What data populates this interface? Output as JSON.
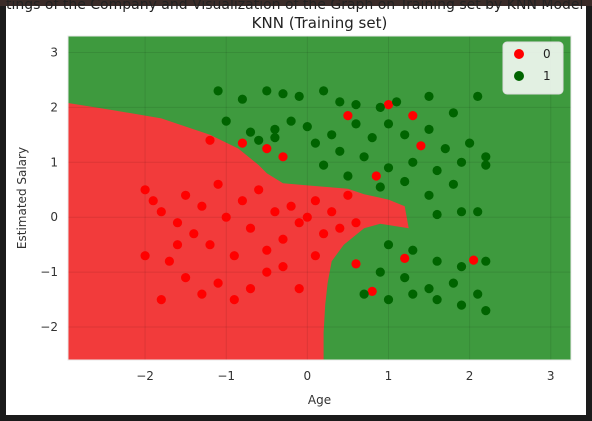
{
  "page": {
    "cut_off_title": "tings of the Company and Visualization of the Graph on Training set by KNN Model of Customer Purchases of a Company"
  },
  "chart_data": {
    "type": "scatter",
    "title": "KNN (Training set)",
    "xlabel": "Age",
    "ylabel": "Estimated Salary",
    "xlim": [
      -2.95,
      3.25
    ],
    "ylim": [
      -2.6,
      3.3
    ],
    "xticks": [
      -2,
      -1,
      0,
      1,
      2,
      3
    ],
    "yticks": [
      -2,
      -1,
      0,
      1,
      2,
      3
    ],
    "grid": true,
    "legend_position": "top-right",
    "colors": {
      "region_0": "#f23b3b",
      "region_1": "#3e9a3e",
      "point_0": "#ff0000",
      "point_1": "#006400"
    },
    "boundary": [
      [
        -2.95,
        2.08
      ],
      [
        -2.4,
        1.95
      ],
      [
        -1.8,
        1.8
      ],
      [
        -1.2,
        1.5
      ],
      [
        -0.85,
        1.25
      ],
      [
        -0.6,
        0.95
      ],
      [
        -0.5,
        0.8
      ],
      [
        -0.3,
        0.62
      ],
      [
        0.0,
        0.58
      ],
      [
        0.5,
        0.52
      ],
      [
        0.7,
        0.42
      ],
      [
        1.0,
        0.32
      ],
      [
        1.2,
        0.2
      ],
      [
        1.25,
        -0.2
      ],
      [
        0.9,
        -0.12
      ],
      [
        0.7,
        -0.2
      ],
      [
        0.45,
        -0.5
      ],
      [
        0.3,
        -0.8
      ],
      [
        0.25,
        -1.2
      ],
      [
        0.22,
        -1.6
      ],
      [
        0.2,
        -2.1
      ],
      [
        0.2,
        -2.6
      ]
    ],
    "series": [
      {
        "name": "0",
        "points": [
          [
            -2,
            0.5
          ],
          [
            -1.9,
            0.3
          ],
          [
            -1.8,
            0.1
          ],
          [
            -1.6,
            -0.1
          ],
          [
            -1.5,
            0.4
          ],
          [
            -1.4,
            -0.3
          ],
          [
            -1.3,
            0.2
          ],
          [
            -1.2,
            -0.5
          ],
          [
            -1.1,
            0.6
          ],
          [
            -1.0,
            0.0
          ],
          [
            -0.9,
            -0.7
          ],
          [
            -0.8,
            0.3
          ],
          [
            -0.7,
            -0.2
          ],
          [
            -0.6,
            0.5
          ],
          [
            -0.5,
            -0.6
          ],
          [
            -0.4,
            0.1
          ],
          [
            -0.3,
            -0.4
          ],
          [
            -0.2,
            0.2
          ],
          [
            -0.1,
            -0.1
          ],
          [
            0.0,
            0.0
          ],
          [
            0.1,
            0.3
          ],
          [
            0.2,
            -0.3
          ],
          [
            0.3,
            0.1
          ],
          [
            0.4,
            -0.2
          ],
          [
            0.5,
            0.4
          ],
          [
            0.6,
            -0.1
          ],
          [
            -1.7,
            -0.8
          ],
          [
            -1.5,
            -1.1
          ],
          [
            -1.3,
            -1.4
          ],
          [
            -1.1,
            -1.2
          ],
          [
            -0.9,
            -1.5
          ],
          [
            -0.7,
            -1.3
          ],
          [
            -0.5,
            -1.0
          ],
          [
            -0.3,
            -0.9
          ],
          [
            -0.1,
            -1.3
          ],
          [
            0.1,
            -0.7
          ],
          [
            -2.0,
            -0.7
          ],
          [
            -1.8,
            -1.5
          ],
          [
            -1.6,
            -0.5
          ],
          [
            -1.2,
            1.4
          ],
          [
            -0.8,
            1.35
          ],
          [
            -0.5,
            1.25
          ],
          [
            -0.3,
            1.1
          ],
          [
            0.5,
            1.85
          ],
          [
            1.0,
            2.05
          ],
          [
            1.3,
            1.85
          ],
          [
            1.4,
            1.3
          ],
          [
            0.85,
            0.75
          ],
          [
            0.6,
            -0.85
          ],
          [
            1.2,
            -0.75
          ],
          [
            2.05,
            -0.78
          ],
          [
            0.8,
            -1.35
          ]
        ]
      },
      {
        "name": "1",
        "points": [
          [
            -1.1,
            2.3
          ],
          [
            -0.8,
            2.15
          ],
          [
            -0.5,
            2.3
          ],
          [
            -0.3,
            2.25
          ],
          [
            -0.1,
            2.2
          ],
          [
            0.2,
            2.3
          ],
          [
            0.4,
            2.1
          ],
          [
            0.6,
            2.05
          ],
          [
            0.9,
            2.0
          ],
          [
            1.1,
            2.1
          ],
          [
            1.5,
            2.2
          ],
          [
            1.8,
            1.9
          ],
          [
            2.1,
            2.2
          ],
          [
            -1.0,
            1.75
          ],
          [
            -0.7,
            1.55
          ],
          [
            -0.4,
            1.6
          ],
          [
            -0.2,
            1.75
          ],
          [
            0.0,
            1.65
          ],
          [
            0.3,
            1.5
          ],
          [
            0.6,
            1.7
          ],
          [
            0.8,
            1.45
          ],
          [
            1.0,
            1.7
          ],
          [
            1.2,
            1.5
          ],
          [
            1.5,
            1.6
          ],
          [
            1.7,
            1.25
          ],
          [
            2.0,
            1.35
          ],
          [
            2.2,
            1.1
          ],
          [
            -0.6,
            1.4
          ],
          [
            -0.4,
            1.45
          ],
          [
            0.1,
            1.35
          ],
          [
            0.4,
            1.2
          ],
          [
            0.7,
            1.1
          ],
          [
            1.0,
            0.9
          ],
          [
            1.3,
            1.0
          ],
          [
            1.6,
            0.85
          ],
          [
            1.9,
            1.0
          ],
          [
            2.2,
            0.95
          ],
          [
            0.2,
            0.95
          ],
          [
            0.5,
            0.75
          ],
          [
            0.9,
            0.55
          ],
          [
            1.2,
            0.65
          ],
          [
            1.5,
            0.4
          ],
          [
            1.8,
            0.6
          ],
          [
            1.6,
            0.05
          ],
          [
            1.9,
            0.1
          ],
          [
            2.1,
            0.1
          ],
          [
            1.0,
            -0.5
          ],
          [
            1.3,
            -0.6
          ],
          [
            1.6,
            -0.8
          ],
          [
            1.9,
            -0.9
          ],
          [
            2.2,
            -0.8
          ],
          [
            0.9,
            -1.0
          ],
          [
            1.2,
            -1.1
          ],
          [
            1.5,
            -1.3
          ],
          [
            1.8,
            -1.2
          ],
          [
            2.1,
            -1.4
          ],
          [
            0.7,
            -1.4
          ],
          [
            1.0,
            -1.5
          ],
          [
            1.3,
            -1.4
          ],
          [
            1.6,
            -1.5
          ],
          [
            1.9,
            -1.6
          ],
          [
            2.2,
            -1.7
          ]
        ]
      }
    ]
  }
}
